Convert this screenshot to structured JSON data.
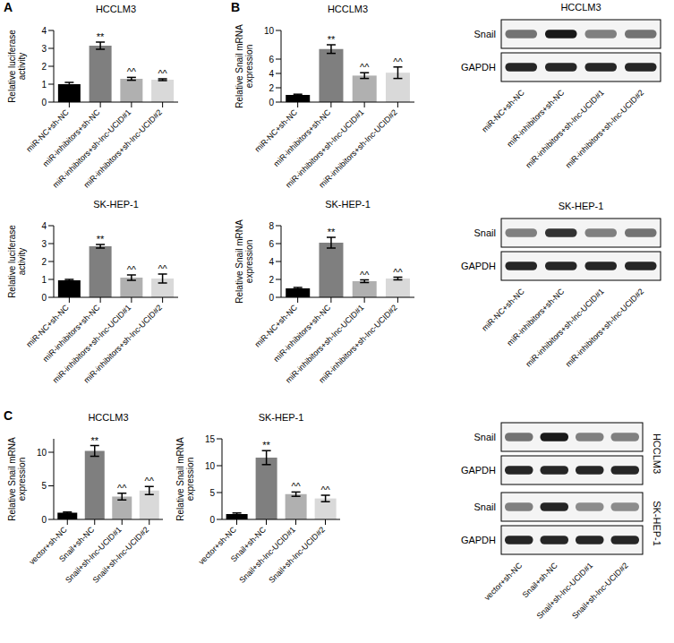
{
  "panel_labels": [
    "A",
    "B",
    "C"
  ],
  "chart_data": [
    {
      "type": "bar",
      "title": "HCCLM3",
      "y_label": "Relative luciferase activity",
      "categories": [
        "miR-NC+sh-NC",
        "miR-inhibitors+sh-NC",
        "miR-inhibitors+sh-lnc-UCID#1",
        "miR-inhibitors+sh-lnc-UCID#2"
      ],
      "values": [
        1.0,
        3.15,
        1.3,
        1.25
      ],
      "errors": [
        0.1,
        0.2,
        0.08,
        0.05
      ],
      "annotations": [
        null,
        "**",
        "^^",
        "^^"
      ],
      "colors": [
        "#000000",
        "#7f7f7f",
        "#b0b0b0",
        "#d9d9d9"
      ],
      "ylim": [
        0,
        4
      ],
      "yticks": [
        0,
        1,
        2,
        3,
        4
      ]
    },
    {
      "type": "bar",
      "title": "SK-HEP-1",
      "y_label": "Relative luciferase activity",
      "categories": [
        "miR-NC+sh-NC",
        "miR-inhibitors+sh-NC",
        "miR-inhibitors+sh-lnc-UCID#1",
        "miR-inhibitors+sh-lnc-UCID#2"
      ],
      "values": [
        0.95,
        2.85,
        1.1,
        1.05
      ],
      "errors": [
        0.05,
        0.1,
        0.15,
        0.25
      ],
      "annotations": [
        null,
        "**",
        "^^",
        "^^"
      ],
      "colors": [
        "#000000",
        "#7f7f7f",
        "#b0b0b0",
        "#d9d9d9"
      ],
      "ylim": [
        0,
        4
      ],
      "yticks": [
        0,
        1,
        2,
        3,
        4
      ]
    },
    {
      "type": "bar",
      "title": "HCCLM3",
      "y_label": "Relative Snail mRNA expression",
      "categories": [
        "miR-NC+sh-NC",
        "miR-inhibitors+sh-NC",
        "miR-inhibitors+sh-lnc-UCID#1",
        "miR-inhibitors+sh-lnc-UCID#2"
      ],
      "values": [
        1.0,
        7.4,
        3.7,
        4.1
      ],
      "errors": [
        0.1,
        0.6,
        0.4,
        0.8
      ],
      "annotations": [
        null,
        "**",
        "^^",
        "^^"
      ],
      "colors": [
        "#000000",
        "#7f7f7f",
        "#b0b0b0",
        "#d9d9d9"
      ],
      "ylim": [
        0,
        10
      ],
      "yticks": [
        0,
        2,
        4,
        6,
        8,
        10
      ]
    },
    {
      "type": "bar",
      "title": "SK-HEP-1",
      "y_label": "Relative Snail mRNA expression",
      "categories": [
        "miR-NC+sh-NC",
        "miR-inhibitors+sh-NC",
        "miR-inhibitors+sh-lnc-UCID#1",
        "miR-inhibitors+sh-lnc-UCID#2"
      ],
      "values": [
        1.0,
        6.1,
        1.8,
        2.1
      ],
      "errors": [
        0.1,
        0.6,
        0.15,
        0.15
      ],
      "annotations": [
        null,
        "**",
        "^^",
        "^^"
      ],
      "colors": [
        "#000000",
        "#7f7f7f",
        "#b0b0b0",
        "#d9d9d9"
      ],
      "ylim": [
        0,
        8
      ],
      "yticks": [
        0,
        2,
        4,
        6,
        8
      ]
    },
    {
      "type": "bar",
      "title": "HCCLM3",
      "y_label": "Relative Snail mRNA expression",
      "categories": [
        "vector+sh-NC",
        "Snail+sh-NC",
        "Snail+sh-lnc-UCID#1",
        "Snail+sh-lnc-UCID#2"
      ],
      "values": [
        1.0,
        10.2,
        3.4,
        4.3
      ],
      "errors": [
        0.1,
        0.8,
        0.5,
        0.6
      ],
      "annotations": [
        null,
        "**",
        "^^",
        "^^"
      ],
      "colors": [
        "#000000",
        "#7f7f7f",
        "#b0b0b0",
        "#d9d9d9"
      ],
      "ylim": [
        0,
        12
      ],
      "yticks": [
        0,
        5,
        10
      ]
    },
    {
      "type": "bar",
      "title": "SK-HEP-1",
      "y_label": "Relative Snail mRNA expression",
      "categories": [
        "vector+sh-NC",
        "Snail+sh-NC",
        "Snail+sh-lnc-UCID#1",
        "Snail+sh-lnc-UCID#2"
      ],
      "values": [
        1.0,
        11.5,
        4.7,
        3.9
      ],
      "errors": [
        0.2,
        1.3,
        0.4,
        0.6
      ],
      "annotations": [
        null,
        "**",
        "^^",
        "^^"
      ],
      "colors": [
        "#000000",
        "#7f7f7f",
        "#b0b0b0",
        "#d9d9d9"
      ],
      "ylim": [
        0,
        15
      ],
      "yticks": [
        0,
        5,
        10,
        15
      ]
    }
  ],
  "blots": [
    {
      "lanes": [
        "miR-NC+sh-NC",
        "miR-inhibitors+sh-NC",
        "miR-inhibitors+sh-lnc-UCID#1",
        "miR-inhibitors+sh-lnc-UCID#2"
      ],
      "groups": [
        {
          "cell_line": "HCCLM3",
          "rows": [
            {
              "label": "Snail",
              "intensity": [
                0.55,
                0.9,
                0.5,
                0.55
              ]
            },
            {
              "label": "GAPDH",
              "intensity": [
                0.85,
                0.85,
                0.85,
                0.85
              ]
            }
          ]
        }
      ]
    },
    {
      "lanes": [
        "miR-NC+sh-NC",
        "miR-inhibitors+sh-NC",
        "miR-inhibitors+sh-lnc-UCID#1",
        "miR-inhibitors+sh-lnc-UCID#2"
      ],
      "groups": [
        {
          "cell_line": "SK-HEP-1",
          "rows": [
            {
              "label": "Snail",
              "intensity": [
                0.5,
                0.8,
                0.5,
                0.55
              ]
            },
            {
              "label": "GAPDH",
              "intensity": [
                0.85,
                0.85,
                0.85,
                0.85
              ]
            }
          ]
        }
      ]
    },
    {
      "lanes": [
        "vector+sh-NC",
        "Snail+sh-NC",
        "Snail+sh-lnc-UCID#1",
        "Snail+sh-lnc-UCID#2"
      ],
      "groups": [
        {
          "cell_line": "HCCLM3",
          "rows": [
            {
              "label": "Snail",
              "intensity": [
                0.55,
                0.9,
                0.5,
                0.5
              ]
            },
            {
              "label": "GAPDH",
              "intensity": [
                0.85,
                0.85,
                0.85,
                0.85
              ]
            }
          ]
        },
        {
          "cell_line": "SK-HEP-1",
          "rows": [
            {
              "label": "Snail",
              "intensity": [
                0.5,
                0.85,
                0.45,
                0.45
              ]
            },
            {
              "label": "GAPDH",
              "intensity": [
                0.85,
                0.85,
                0.85,
                0.85
              ]
            }
          ]
        }
      ]
    }
  ]
}
